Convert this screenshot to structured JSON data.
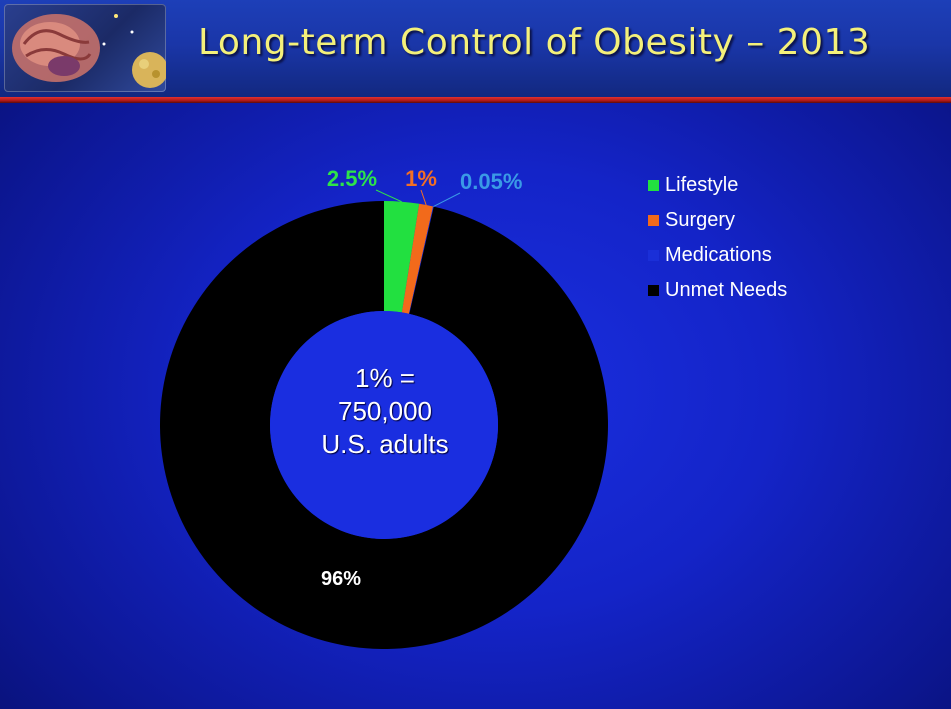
{
  "title": "Long-term Control of Obesity – 2013",
  "chart_data": {
    "type": "pie",
    "style": "donut",
    "slices": [
      {
        "name": "Lifestyle",
        "value": 2.5,
        "label": "2.5%",
        "color": "#22e040",
        "label_color": "#2ee34a"
      },
      {
        "name": "Surgery",
        "value": 1,
        "label": "1%",
        "color": "#f26a1b",
        "label_color": "#f36f24"
      },
      {
        "name": "Medications",
        "value": 0.05,
        "label": "0.05%",
        "color": "#1a2fd8",
        "label_color": "#3a9ae6"
      },
      {
        "name": "Unmet Needs",
        "value": 96,
        "label": "96%",
        "color": "#000000",
        "label_color": "#ffffff"
      }
    ],
    "legend_position": "top-right",
    "center_text": [
      "1% =",
      "750,000",
      "U.S. adults"
    ]
  }
}
